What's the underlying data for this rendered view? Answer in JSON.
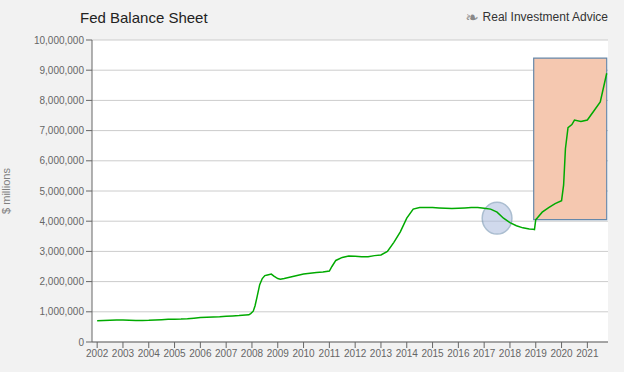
{
  "chart_data": {
    "type": "line",
    "title": "Fed Balance Sheet",
    "ylabel": "$ millions",
    "color": "#00aa00",
    "x": [
      2002.0,
      2002.25,
      2002.5,
      2002.75,
      2003.0,
      2003.25,
      2003.5,
      2003.75,
      2004.0,
      2004.25,
      2004.5,
      2004.75,
      2005.0,
      2005.25,
      2005.5,
      2005.75,
      2006.0,
      2006.25,
      2006.5,
      2006.75,
      2007.0,
      2007.25,
      2007.5,
      2007.75,
      2007.88,
      2007.95,
      2008.05,
      2008.12,
      2008.2,
      2008.3,
      2008.4,
      2008.5,
      2008.6,
      2008.75,
      2008.85,
      2009.0,
      2009.1,
      2009.25,
      2009.5,
      2009.75,
      2010.0,
      2010.25,
      2010.5,
      2010.75,
      2011.0,
      2011.1,
      2011.25,
      2011.5,
      2011.75,
      2012.0,
      2012.25,
      2012.5,
      2012.75,
      2013.0,
      2013.25,
      2013.5,
      2013.75,
      2014.0,
      2014.25,
      2014.5,
      2014.75,
      2015.0,
      2015.25,
      2015.5,
      2015.75,
      2016.0,
      2016.25,
      2016.5,
      2016.75,
      2017.0,
      2017.25,
      2017.5,
      2017.75,
      2018.0,
      2018.25,
      2018.5,
      2018.75,
      2018.9,
      2018.95,
      2019.0,
      2019.05,
      2019.25,
      2019.5,
      2019.75,
      2020.0,
      2020.08,
      2020.15,
      2020.25,
      2020.4,
      2020.5,
      2020.75,
      2021.0,
      2021.25,
      2021.5,
      2021.75
    ],
    "values": [
      700000,
      710000,
      720000,
      730000,
      725000,
      720000,
      715000,
      715000,
      720000,
      730000,
      740000,
      750000,
      755000,
      760000,
      770000,
      790000,
      810000,
      820000,
      830000,
      840000,
      855000,
      865000,
      875000,
      890000,
      900000,
      940000,
      1020000,
      1200000,
      1500000,
      1900000,
      2100000,
      2200000,
      2220000,
      2250000,
      2180000,
      2100000,
      2080000,
      2100000,
      2150000,
      2200000,
      2250000,
      2280000,
      2300000,
      2320000,
      2350000,
      2500000,
      2700000,
      2800000,
      2850000,
      2840000,
      2820000,
      2820000,
      2860000,
      2880000,
      3000000,
      3300000,
      3650000,
      4100000,
      4400000,
      4450000,
      4450000,
      4450000,
      4440000,
      4430000,
      4420000,
      4430000,
      4440000,
      4450000,
      4450000,
      4430000,
      4400000,
      4300000,
      4100000,
      3950000,
      3850000,
      3780000,
      3740000,
      3730000,
      3720000,
      4050000,
      4100000,
      4300000,
      4450000,
      4580000,
      4680000,
      5200000,
      6400000,
      7100000,
      7200000,
      7350000,
      7300000,
      7350000,
      7650000,
      7950000,
      8900000
    ],
    "xlim": [
      2001.8,
      2021.8
    ],
    "xticks": [
      2002,
      2003,
      2004,
      2005,
      2006,
      2007,
      2008,
      2009,
      2010,
      2011,
      2012,
      2013,
      2014,
      2015,
      2016,
      2017,
      2018,
      2019,
      2020,
      2021
    ],
    "ylim": [
      0,
      10000000
    ],
    "yticks": [
      0,
      {
        "value": 1000000,
        "label": "1,000,000"
      },
      {
        "value": 2000000,
        "label": "2,000,000"
      },
      {
        "value": 3000000,
        "label": "3,000,000"
      },
      {
        "value": 4000000,
        "label": "4,000,000"
      },
      {
        "value": 5000000,
        "label": "5,000,000"
      },
      {
        "value": 6000000,
        "label": "6,000,000"
      },
      {
        "value": 7000000,
        "label": "7,000,000"
      },
      {
        "value": 8000000,
        "label": "8,000,000"
      },
      {
        "value": 9000000,
        "label": "9,000,000"
      },
      {
        "value": 10000000,
        "label": "10,000,000"
      }
    ],
    "grid": true,
    "annotations": [
      {
        "text": "❧"
      },
      {
        "text": "Real Investment Advice"
      }
    ],
    "highlights": [
      {
        "shape": "rect",
        "x": [
          2018.92,
          2021.75
        ],
        "y": [
          4050000,
          9400000
        ],
        "color": "#f5c8b0",
        "edge_color": "#6688aa"
      },
      {
        "shape": "ellipse",
        "center": [
          2017.5,
          4100000
        ],
        "size": [
          1.15,
          1050000
        ],
        "color": "#aabbdd",
        "edge_color": "#6688aa"
      }
    ]
  }
}
